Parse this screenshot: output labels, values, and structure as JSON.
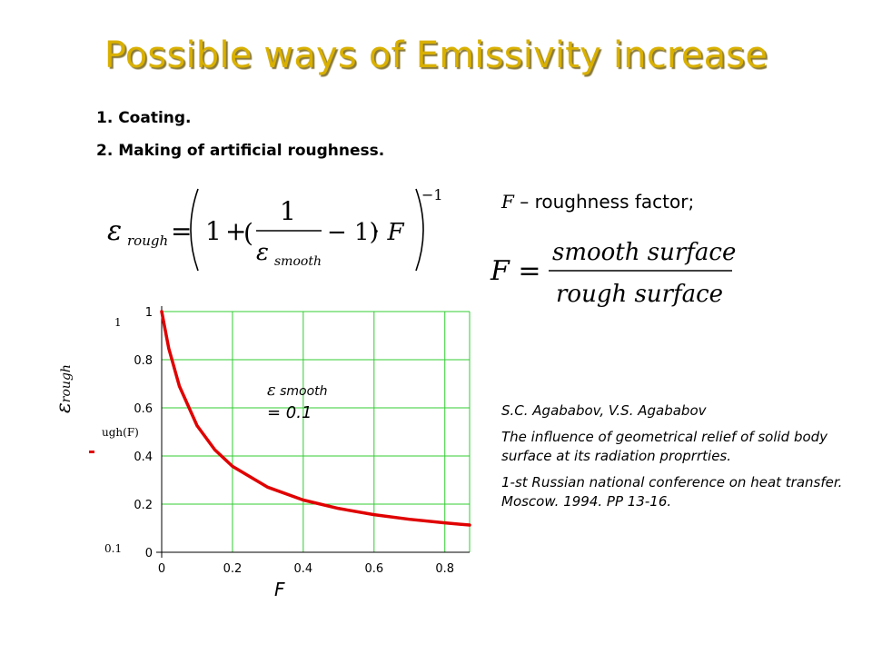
{
  "title": "Possible ways of Emissivity increase",
  "list": [
    "1. Coating.",
    "2. Making of artificial roughness."
  ],
  "formula": {
    "lhs": "ε",
    "lhs_sub": "rough",
    "eq": "=",
    "one": "1",
    "plus": "+",
    "open": "(",
    "frac_num": "1",
    "frac_den": "ε",
    "frac_den_sub": "smooth",
    "minus_one": "− 1)",
    "dot_F": "· F",
    "exponent": "−1"
  },
  "roughness": {
    "symbol": "F",
    "label": " – roughness factor;",
    "lhs": "F =",
    "numerator": "smooth surface",
    "denominator": "rough surface"
  },
  "reference": {
    "authors": "S.C. Agababov, V.S. Agababov",
    "paper": "The influence of geometrical relief of solid body surface at its radiation proprrties.",
    "venue": "1-st Russian national conference on heat transfer. Moscow. 1994. PP 13-16."
  },
  "chart_data": {
    "type": "line",
    "xlabel": "F",
    "ylabel_symbol": "ε",
    "ylabel_sub": "rough",
    "x_ticks": [
      "0",
      "0.2",
      "0.4",
      "0.6",
      "0.8"
    ],
    "y_ticks": [
      "0",
      "0.2",
      "0.4",
      "0.6",
      "0.8",
      "1"
    ],
    "xlim": [
      0,
      0.87
    ],
    "ylim": [
      0,
      1
    ],
    "grid": true,
    "eps_smooth": 0.1,
    "annotation_symbol": "ε",
    "annotation_text": " smooth ",
    "annotation_value": "= 0.1",
    "artifact_top": "1",
    "artifact_mid": "ugh(F)",
    "artifact_bot": "0.1",
    "series": [
      {
        "color": "#e00000",
        "x": [
          0,
          0.02,
          0.05,
          0.1,
          0.15,
          0.2,
          0.3,
          0.4,
          0.5,
          0.6,
          0.7,
          0.8,
          0.87
        ],
        "y": [
          1,
          0.847,
          0.69,
          0.526,
          0.426,
          0.357,
          0.27,
          0.217,
          0.182,
          0.156,
          0.137,
          0.122,
          0.113
        ]
      }
    ]
  }
}
